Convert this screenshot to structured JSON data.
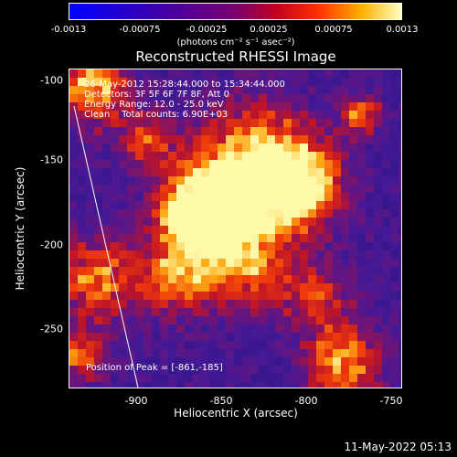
{
  "colorbar": {
    "ticks": [
      "-0.0013",
      "-0.00075",
      "-0.00025",
      "0.00025",
      "0.00075",
      "0.0013"
    ],
    "units": "(photons cm⁻² s⁻¹ asec⁻²)"
  },
  "title": "Reconstructed RHESSI Image",
  "info": {
    "time": "26-May-2012 15:28:44.000 to 15:34:44.000",
    "detectors": "Detectors: 3F 5F 6F 7F 8F, Att 0",
    "energy": "Energy Range: 12.0 - 25.0 keV",
    "clean": "Clean    Total counts: 6.90E+03"
  },
  "peak_label": "Position of Peak = [-861,-185]",
  "axes": {
    "xlabel": "Heliocentric X (arcsec)",
    "ylabel": "Heliocentric Y (arcsec)",
    "xticks": [
      "-900",
      "-850",
      "-800",
      "-750"
    ],
    "yticks": [
      "-100",
      "-150",
      "-200",
      "-250"
    ]
  },
  "timestamp": "11-May-2022 05:13"
}
